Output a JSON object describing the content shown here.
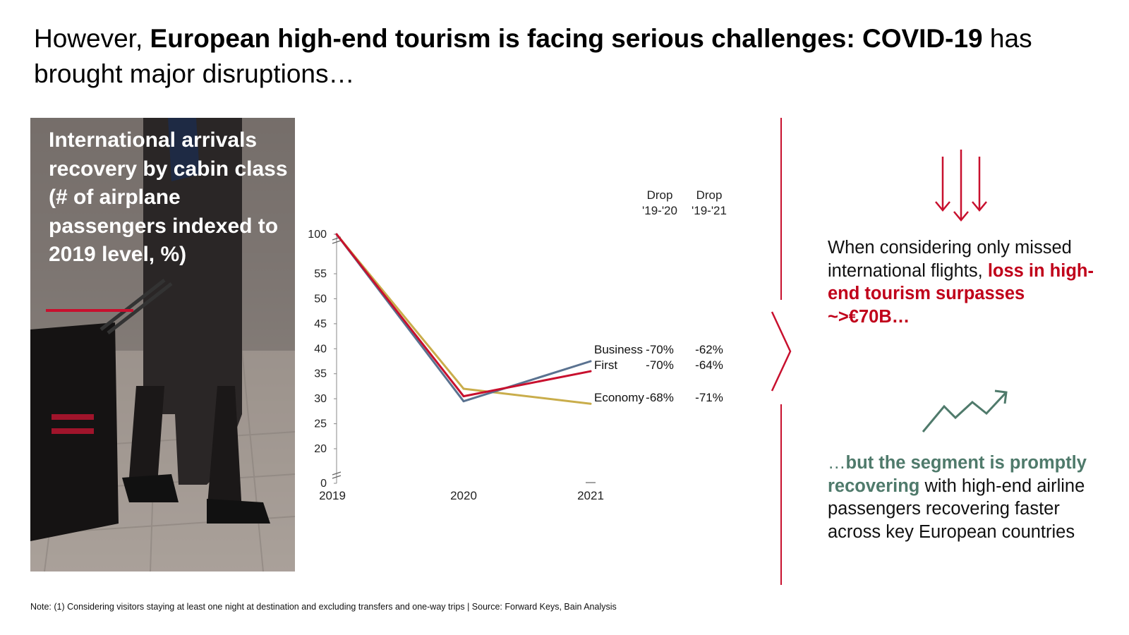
{
  "title": {
    "prefix": "However, ",
    "bold": "European high-end tourism is facing serious challenges: COVID-19",
    "suffix": " has brought major disruptions…"
  },
  "panel": {
    "title": "International arrivals recovery by cabin class (# of airplane passengers indexed to 2019 level, %)"
  },
  "chart_data": {
    "type": "line",
    "x": [
      "2019",
      "2020",
      "2021"
    ],
    "y_ticks": [
      0,
      20,
      25,
      30,
      35,
      40,
      45,
      50,
      55,
      100
    ],
    "ylim": [
      0,
      100
    ],
    "axis_break": true,
    "series": [
      {
        "name": "Business",
        "values": [
          100,
          29.5,
          37.5
        ],
        "color": "#5a7290",
        "drop_19_20": "-70%",
        "drop_19_21": "-62%"
      },
      {
        "name": "First",
        "values": [
          100,
          30.5,
          35.5
        ],
        "color": "#c8102e",
        "drop_19_20": "-70%",
        "drop_19_21": "-64%"
      },
      {
        "name": "Economy",
        "values": [
          100,
          32,
          29
        ],
        "color": "#c9ad4b",
        "drop_19_20": "-68%",
        "drop_19_21": "-71%"
      }
    ],
    "drop_headers": [
      {
        "line1": "Drop",
        "line2": "'19-'20"
      },
      {
        "line1": "Drop",
        "line2": "'19-'21"
      }
    ]
  },
  "notes": {
    "top_plain": "When considering only missed international flights, ",
    "top_highlight": "loss in high-end tourism surpasses ~>€70B…",
    "bottom_lead": "…",
    "bottom_highlight": "but the segment is promptly recovering",
    "bottom_plain": " with high-end airline passengers recovering faster across key European countries"
  },
  "footnote": "Note: (1) Considering visitors staying at least one night at destination and excluding transfers and one-way trips | Source: Forward Keys, Bain Analysis",
  "colors": {
    "accent_red": "#c8102e",
    "accent_green": "#4f7a6b"
  },
  "icons": [
    "down-arrows-icon",
    "trend-up-icon",
    "chevron-right-icon"
  ]
}
